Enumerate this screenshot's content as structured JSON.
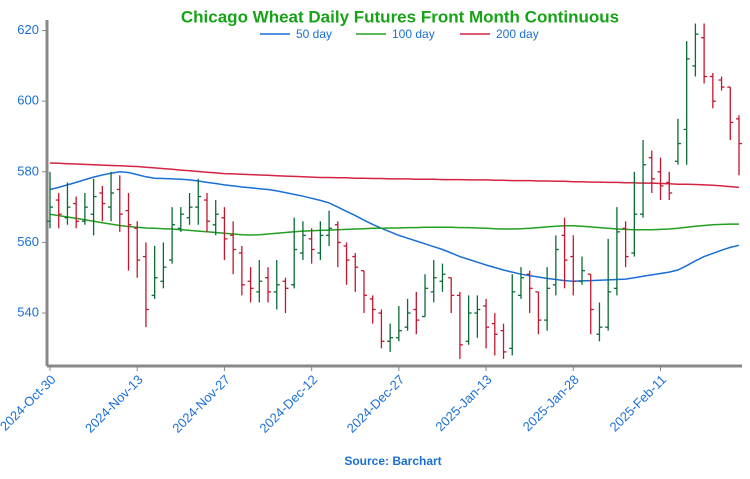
{
  "chart_data": {
    "type": "ohlc",
    "title": "Chicago Wheat Daily Futures Front Month Continuous",
    "source": "Source: Barchart",
    "categories": [
      "2024-Oct-30",
      null,
      null,
      null,
      null,
      null,
      null,
      null,
      null,
      null,
      "2024-Nov-13",
      null,
      null,
      null,
      null,
      null,
      null,
      null,
      null,
      null,
      "2024-Nov-27",
      null,
      null,
      null,
      null,
      null,
      null,
      null,
      null,
      null,
      "2024-Dec-12",
      null,
      null,
      null,
      null,
      null,
      null,
      null,
      null,
      null,
      "2024-Dec-27",
      null,
      null,
      null,
      null,
      null,
      null,
      null,
      null,
      null,
      "2025-Jan-13",
      null,
      null,
      null,
      null,
      null,
      null,
      null,
      null,
      null,
      "2025-Jan-28",
      null,
      null,
      null,
      null,
      null,
      null,
      null,
      null,
      null,
      "2025-Feb-11",
      null,
      null,
      null,
      null,
      null,
      null,
      null,
      null,
      null
    ],
    "ylim": [
      525,
      623
    ],
    "yticks": [
      540,
      560,
      580,
      600,
      620
    ],
    "up_color": "#0a6b35",
    "down_color": "#c4162e",
    "open": [
      566,
      572,
      567,
      571,
      566,
      568,
      574,
      570,
      575,
      569,
      564,
      556,
      545,
      549,
      555,
      564,
      567,
      570,
      572,
      565,
      567,
      562,
      557,
      549,
      546,
      550,
      546,
      549,
      548,
      557,
      561,
      557,
      562,
      565,
      559,
      556,
      552,
      544,
      540,
      532,
      533,
      536,
      541,
      539,
      546,
      549,
      550,
      545,
      532,
      540,
      542,
      537,
      535,
      530,
      545,
      551,
      546,
      538,
      548,
      562,
      556,
      549,
      551,
      534,
      536,
      547,
      564,
      557,
      568,
      584,
      580,
      577,
      583,
      592,
      610,
      618,
      607,
      606,
      604,
      595
    ],
    "high": [
      580,
      574,
      577,
      573,
      574,
      578,
      576,
      580,
      579,
      574,
      566,
      560,
      559,
      560,
      570,
      570,
      574,
      578,
      574,
      572,
      570,
      566,
      559,
      553,
      555,
      553,
      555,
      550,
      567,
      566,
      564,
      566,
      569,
      566,
      560,
      557,
      552,
      545,
      541,
      537,
      542,
      544,
      546,
      551,
      555,
      554,
      550,
      546,
      545,
      545,
      544,
      540,
      537,
      551,
      553,
      552,
      546,
      553,
      562,
      567,
      562,
      556,
      551,
      543,
      561,
      570,
      566,
      580,
      589,
      586,
      584,
      580,
      595,
      617,
      622,
      622,
      608,
      607,
      604,
      596
    ],
    "low": [
      564,
      564,
      565,
      564,
      565,
      562,
      566,
      566,
      563,
      552,
      550,
      536,
      544,
      547,
      554,
      563,
      565,
      565,
      563,
      562,
      555,
      551,
      545,
      543,
      543,
      543,
      541,
      540,
      547,
      555,
      554,
      555,
      559,
      553,
      548,
      546,
      540,
      537,
      530,
      529,
      532,
      535,
      534,
      539,
      543,
      546,
      540,
      527,
      531,
      533,
      530,
      528,
      527,
      528,
      544,
      540,
      534,
      535,
      545,
      547,
      545,
      548,
      534,
      532,
      535,
      545,
      553,
      556,
      567,
      574,
      572,
      572,
      582,
      582,
      607,
      605,
      598,
      603,
      589,
      579
    ],
    "close": [
      570,
      568,
      570,
      566,
      570,
      573,
      571,
      574,
      568,
      565,
      555,
      541,
      550,
      553,
      565,
      568,
      570,
      573,
      566,
      568,
      561,
      558,
      548,
      547,
      549,
      546,
      548,
      547,
      558,
      562,
      558,
      562,
      564,
      560,
      555,
      553,
      545,
      541,
      532,
      533,
      535,
      540,
      538,
      547,
      550,
      551,
      545,
      531,
      540,
      541,
      536,
      534,
      529,
      546,
      550,
      547,
      538,
      547,
      558,
      555,
      549,
      552,
      541,
      536,
      546,
      563,
      556,
      568,
      582,
      578,
      576,
      574,
      588,
      612,
      619,
      607,
      600,
      604,
      594,
      588
    ],
    "series": [
      {
        "name": "50 day",
        "color": "#1a6fd6",
        "values": [
          575,
          575.6,
          576.3,
          577,
          577.8,
          578.5,
          579.1,
          579.6,
          580,
          579.8,
          579.2,
          578.6,
          578.2,
          578.1,
          578,
          577.9,
          577.7,
          577.4,
          577,
          576.7,
          576.3,
          576,
          575.7,
          575.5,
          575.2,
          575,
          574.6,
          574.1,
          573.6,
          573.1,
          572.5,
          571.9,
          571.2,
          570,
          568.8,
          567.6,
          566.3,
          565.1,
          564,
          563,
          562,
          561.2,
          560.4,
          559.6,
          558.8,
          558,
          557,
          556,
          555.2,
          554.4,
          553.6,
          552.9,
          552.2,
          551.6,
          551,
          550.6,
          550.2,
          549.8,
          549.5,
          549.2,
          549,
          549.1,
          549.2,
          549.3,
          549.4,
          549.5,
          549.6,
          550,
          550.4,
          550.8,
          551.2,
          551.6,
          552.2,
          553.4,
          554.8,
          556,
          556.9,
          557.8,
          558.6,
          559.2
        ]
      },
      {
        "name": "100 day",
        "color": "#22a022",
        "values": [
          568,
          567.6,
          567.2,
          566.8,
          566.4,
          566,
          565.6,
          565.2,
          564.8,
          564.5,
          564.3,
          564.1,
          564,
          563.9,
          563.8,
          563.6,
          563.4,
          563.2,
          563,
          562.8,
          562.6,
          562.4,
          562.2,
          562.1,
          562.2,
          562.4,
          562.6,
          562.8,
          563,
          563.2,
          563.3,
          563.4,
          563.5,
          563.6,
          563.7,
          563.8,
          563.9,
          564,
          564,
          564.1,
          564.1,
          564.2,
          564.2,
          564.3,
          564.3,
          564.3,
          564.3,
          564.2,
          564.2,
          564.1,
          564,
          563.9,
          563.8,
          563.8,
          563.9,
          564,
          564.2,
          564.4,
          564.6,
          564.7,
          564.7,
          564.6,
          564.4,
          564.2,
          564,
          563.8,
          563.7,
          563.6,
          563.6,
          563.6,
          563.7,
          563.8,
          564,
          564.3,
          564.6,
          564.8,
          565,
          565.1,
          565.2,
          565.2
        ]
      },
      {
        "name": "200 day",
        "color": "#d42443",
        "values": [
          582.5,
          582.4,
          582.3,
          582.2,
          582.1,
          582,
          581.9,
          581.8,
          581.7,
          581.6,
          581.5,
          581.3,
          581.1,
          580.9,
          580.7,
          580.5,
          580.3,
          580.1,
          579.9,
          579.7,
          579.5,
          579.4,
          579.3,
          579.2,
          579.1,
          579,
          578.9,
          578.8,
          578.7,
          578.6,
          578.5,
          578.4,
          578.4,
          578.3,
          578.3,
          578.2,
          578.2,
          578.1,
          578.1,
          578,
          578,
          578,
          577.9,
          577.9,
          577.9,
          577.8,
          577.8,
          577.8,
          577.7,
          577.7,
          577.7,
          577.6,
          577.6,
          577.5,
          577.5,
          577.5,
          577.4,
          577.4,
          577.3,
          577.3,
          577.2,
          577.2,
          577.1,
          577.1,
          577,
          577,
          576.9,
          576.9,
          576.8,
          576.8,
          576.7,
          576.6,
          576.5,
          576.5,
          576.4,
          576.3,
          576.2,
          576,
          575.8,
          575.6
        ]
      }
    ]
  }
}
